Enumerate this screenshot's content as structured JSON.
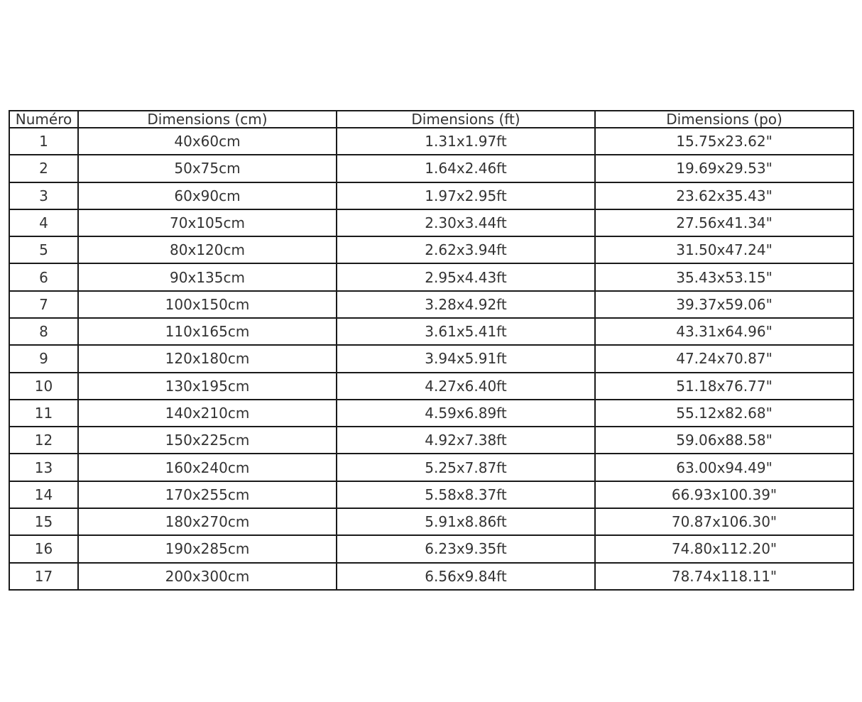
{
  "chart_data": {
    "type": "table",
    "title": "",
    "columns": [
      "Numéro",
      "Dimensions (cm)",
      "Dimensions (ft)",
      "Dimensions (po)"
    ],
    "rows": [
      [
        "1",
        "40x60cm",
        "1.31x1.97ft",
        "15.75x23.62\""
      ],
      [
        "2",
        "50x75cm",
        "1.64x2.46ft",
        "19.69x29.53\""
      ],
      [
        "3",
        "60x90cm",
        "1.97x2.95ft",
        "23.62x35.43\""
      ],
      [
        "4",
        "70x105cm",
        "2.30x3.44ft",
        "27.56x41.34\""
      ],
      [
        "5",
        "80x120cm",
        "2.62x3.94ft",
        "31.50x47.24\""
      ],
      [
        "6",
        "90x135cm",
        "2.95x4.43ft",
        "35.43x53.15\""
      ],
      [
        "7",
        "100x150cm",
        "3.28x4.92ft",
        "39.37x59.06\""
      ],
      [
        "8",
        "110x165cm",
        "3.61x5.41ft",
        "43.31x64.96\""
      ],
      [
        "9",
        "120x180cm",
        "3.94x5.91ft",
        "47.24x70.87\""
      ],
      [
        "10",
        "130x195cm",
        "4.27x6.40ft",
        "51.18x76.77\""
      ],
      [
        "11",
        "140x210cm",
        "4.59x6.89ft",
        "55.12x82.68\""
      ],
      [
        "12",
        "150x225cm",
        "4.92x7.38ft",
        "59.06x88.58\""
      ],
      [
        "13",
        "160x240cm",
        "5.25x7.87ft",
        "63.00x94.49\""
      ],
      [
        "14",
        "170x255cm",
        "5.58x8.37ft",
        "66.93x100.39\""
      ],
      [
        "15",
        "180x270cm",
        "5.91x8.86ft",
        "70.87x106.30\""
      ],
      [
        "16",
        "190x285cm",
        "6.23x9.35ft",
        "74.80x112.20\""
      ],
      [
        "17",
        "200x300cm",
        "6.56x9.84ft",
        "78.74x118.11\""
      ]
    ],
    "layout": {
      "grid": true,
      "header_row": true,
      "text_align": "center"
    }
  },
  "colors": {
    "border": "#1a1a1a",
    "text": "#333333",
    "background": "#ffffff"
  }
}
